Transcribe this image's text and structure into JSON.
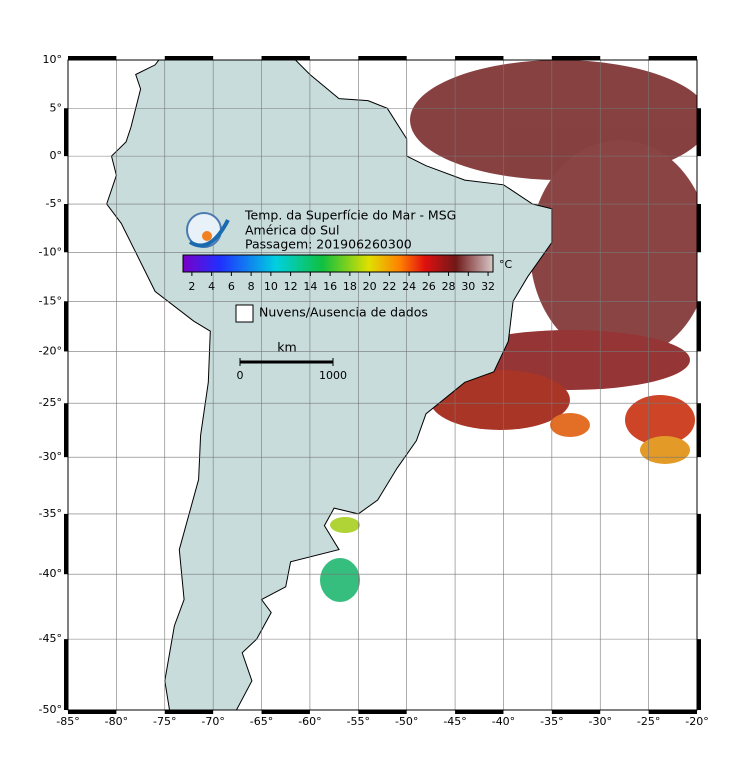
{
  "map": {
    "title": "Temp. da Superfície do Mar - MSG",
    "region": "América do Sul",
    "pass": "Passagem: 201906260300",
    "colorbar": {
      "lim": [
        1.1,
        32.5
      ],
      "ticks": [
        2,
        4,
        6,
        8,
        10,
        12,
        14,
        16,
        18,
        20,
        22,
        24,
        26,
        28,
        30,
        32
      ],
      "unit": "°C"
    },
    "legend": "Nuvens/Ausencia de dados",
    "scale": {
      "unit": "km",
      "ticks": [
        0,
        1000
      ]
    },
    "lon": {
      "lim": [
        -85,
        -20
      ],
      "ticks": [
        {
          "value": -85,
          "label": "-85°"
        },
        {
          "value": -80,
          "label": "-80°"
        },
        {
          "value": -75,
          "label": "-75°"
        },
        {
          "value": -70,
          "label": "-70°"
        },
        {
          "value": -65,
          "label": "-65°"
        },
        {
          "value": -60,
          "label": "-60°"
        },
        {
          "value": -55,
          "label": "-55°"
        },
        {
          "value": -50,
          "label": "-50°"
        },
        {
          "value": -45,
          "label": "-45°"
        },
        {
          "value": -40,
          "label": "-40°"
        },
        {
          "value": -35,
          "label": "-35°"
        },
        {
          "value": -30,
          "label": "-30°"
        },
        {
          "value": -25,
          "label": "-25°"
        },
        {
          "value": -20,
          "label": "-20°"
        }
      ]
    },
    "lat": {
      "lim": [
        10,
        -50
      ],
      "ticks": [
        {
          "value": 10,
          "label": "10°"
        },
        {
          "value": 5,
          "label": "5°"
        },
        {
          "value": 0,
          "label": "0°"
        },
        {
          "value": -5,
          "label": "-5°"
        },
        {
          "value": -10,
          "label": "-10°"
        },
        {
          "value": -15,
          "label": "-15°"
        },
        {
          "value": -20,
          "label": "-20°"
        },
        {
          "value": -25,
          "label": "-25°"
        },
        {
          "value": -30,
          "label": "-30°"
        },
        {
          "value": -35,
          "label": "-35°"
        },
        {
          "value": -40,
          "label": "-40°"
        },
        {
          "value": -45,
          "label": "-45°"
        },
        {
          "value": -50,
          "label": "-50°"
        }
      ]
    }
  }
}
